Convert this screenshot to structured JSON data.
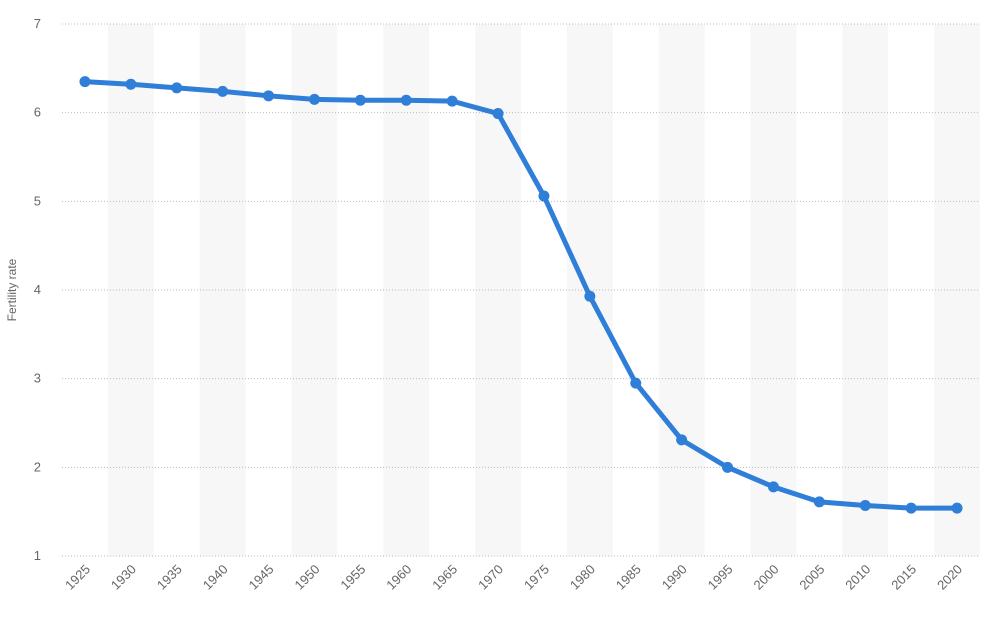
{
  "chart_data": {
    "type": "line",
    "title": "",
    "xlabel": "",
    "ylabel": "Fertility rate",
    "x": [
      "1925",
      "1930",
      "1935",
      "1940",
      "1945",
      "1950",
      "1955",
      "1960",
      "1965",
      "1970",
      "1975",
      "1980",
      "1985",
      "1990",
      "1995",
      "2000",
      "2005",
      "2010",
      "2015",
      "2020"
    ],
    "series": [
      {
        "values": [
          6.35,
          6.32,
          6.28,
          6.24,
          6.19,
          6.15,
          6.14,
          6.14,
          6.13,
          5.99,
          5.06,
          3.93,
          2.95,
          2.31,
          2.0,
          1.78,
          1.61,
          1.57,
          1.54,
          1.54
        ]
      }
    ],
    "ylim": [
      1,
      7
    ],
    "yticks": [
      1,
      2,
      3,
      4,
      5,
      6,
      7
    ],
    "grid": true,
    "legend": "none",
    "colors": {
      "line": "#2f7ed8",
      "band": "#f7f7f7",
      "grid": "#bbbbbb",
      "text": "#666666"
    }
  }
}
